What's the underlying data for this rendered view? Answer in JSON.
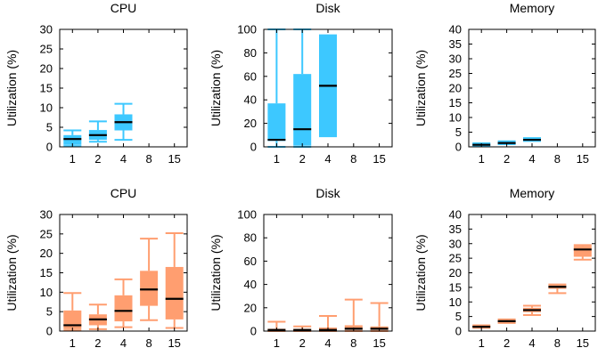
{
  "colors": {
    "top_row": "#3dc8ff",
    "bottom_row": "#ff9e70",
    "median": "#000000"
  },
  "chart_data": [
    {
      "type": "box",
      "title": "CPU",
      "xlabel": "",
      "ylabel": "Utilization (%)",
      "categories": [
        "1",
        "2",
        "4",
        "8",
        "15"
      ],
      "ylim": [
        0,
        30
      ],
      "yticks": [
        "0",
        "5",
        "10",
        "15",
        "20",
        "25",
        "30"
      ],
      "boxes": [
        {
          "category": "1",
          "min": 0.2,
          "q1": 0.5,
          "median": 2.0,
          "q3": 3.0,
          "max": 4.2
        },
        {
          "category": "2",
          "min": 1.3,
          "q1": 1.8,
          "median": 3.0,
          "q3": 4.3,
          "max": 6.5
        },
        {
          "category": "4",
          "min": 1.8,
          "q1": 4.2,
          "median": 6.3,
          "q3": 8.3,
          "max": 11.0
        }
      ]
    },
    {
      "type": "box",
      "title": "Disk",
      "xlabel": "",
      "ylabel": "Utilization (%)",
      "categories": [
        "1",
        "2",
        "4",
        "8",
        "15"
      ],
      "ylim": [
        0,
        100
      ],
      "yticks": [
        "0",
        "20",
        "40",
        "60",
        "80",
        "100"
      ],
      "boxes": [
        {
          "category": "1",
          "min": 0,
          "q1": 5,
          "median": 6,
          "q3": 37,
          "max": 100
        },
        {
          "category": "2",
          "min": 0,
          "q1": 1,
          "median": 15,
          "q3": 62,
          "max": 100
        },
        {
          "category": "4",
          "min": 9,
          "q1": 9,
          "median": 52,
          "q3": 95,
          "max": 95
        }
      ]
    },
    {
      "type": "box",
      "title": "Memory",
      "xlabel": "",
      "ylabel": "Utilization (%)",
      "categories": [
        "1",
        "2",
        "4",
        "8",
        "15"
      ],
      "ylim": [
        0,
        40
      ],
      "yticks": [
        "0",
        "5",
        "10",
        "15",
        "20",
        "25",
        "30",
        "35",
        "40"
      ],
      "boxes": [
        {
          "category": "1",
          "min": 0.2,
          "q1": 0.3,
          "median": 0.7,
          "q3": 1.0,
          "max": 1.2
        },
        {
          "category": "2",
          "min": 0.9,
          "q1": 1.0,
          "median": 1.3,
          "q3": 1.6,
          "max": 1.9
        },
        {
          "category": "4",
          "min": 2.0,
          "q1": 2.1,
          "median": 2.4,
          "q3": 2.7,
          "max": 3.0
        }
      ]
    },
    {
      "type": "box",
      "title": "CPU",
      "xlabel": "",
      "ylabel": "Utilization (%)",
      "categories": [
        "1",
        "2",
        "4",
        "8",
        "15"
      ],
      "ylim": [
        0,
        30
      ],
      "yticks": [
        "0",
        "5",
        "10",
        "15",
        "20",
        "25",
        "30"
      ],
      "boxes": [
        {
          "category": "1",
          "min": 0.2,
          "q1": 0.5,
          "median": 1.5,
          "q3": 5.3,
          "max": 9.8
        },
        {
          "category": "2",
          "min": 0.5,
          "q1": 1.5,
          "median": 3.0,
          "q3": 4.3,
          "max": 6.8
        },
        {
          "category": "4",
          "min": 1.0,
          "q1": 2.5,
          "median": 5.2,
          "q3": 9.2,
          "max": 13.3
        },
        {
          "category": "8",
          "min": 2.8,
          "q1": 6.5,
          "median": 10.7,
          "q3": 15.5,
          "max": 23.8
        },
        {
          "category": "15",
          "min": 0.8,
          "q1": 3.0,
          "median": 8.3,
          "q3": 16.5,
          "max": 25.2
        }
      ]
    },
    {
      "type": "box",
      "title": "Disk",
      "xlabel": "",
      "ylabel": "Utilization (%)",
      "categories": [
        "1",
        "2",
        "4",
        "8",
        "15"
      ],
      "ylim": [
        0,
        100
      ],
      "yticks": [
        "0",
        "20",
        "40",
        "60",
        "80",
        "100"
      ],
      "boxes": [
        {
          "category": "1",
          "min": 0,
          "q1": 0.5,
          "median": 1,
          "q3": 2,
          "max": 8
        },
        {
          "category": "2",
          "min": 0,
          "q1": 0.5,
          "median": 1,
          "q3": 2,
          "max": 4
        },
        {
          "category": "4",
          "min": 0,
          "q1": 0.5,
          "median": 1,
          "q3": 3,
          "max": 13
        },
        {
          "category": "8",
          "min": 0,
          "q1": 1,
          "median": 2,
          "q3": 5,
          "max": 27
        },
        {
          "category": "15",
          "min": 0,
          "q1": 1,
          "median": 2,
          "q3": 4,
          "max": 24
        }
      ]
    },
    {
      "type": "box",
      "title": "Memory",
      "xlabel": "",
      "ylabel": "Utilization (%)",
      "categories": [
        "1",
        "2",
        "4",
        "8",
        "15"
      ],
      "ylim": [
        0,
        40
      ],
      "yticks": [
        "0",
        "5",
        "10",
        "15",
        "20",
        "25",
        "30",
        "35",
        "40"
      ],
      "boxes": [
        {
          "category": "1",
          "min": 1.1,
          "q1": 1.2,
          "median": 1.5,
          "q3": 1.8,
          "max": 2.0
        },
        {
          "category": "2",
          "min": 2.8,
          "q1": 3.0,
          "median": 3.4,
          "q3": 3.7,
          "max": 4.0
        },
        {
          "category": "4",
          "min": 5.5,
          "q1": 6.5,
          "median": 7.2,
          "q3": 8.0,
          "max": 8.7
        },
        {
          "category": "8",
          "min": 13.0,
          "q1": 14.5,
          "median": 15.2,
          "q3": 15.7,
          "max": 16.0
        },
        {
          "category": "15",
          "min": 24.5,
          "q1": 25.5,
          "median": 28.0,
          "q3": 29.2,
          "max": 29.5
        }
      ]
    }
  ]
}
